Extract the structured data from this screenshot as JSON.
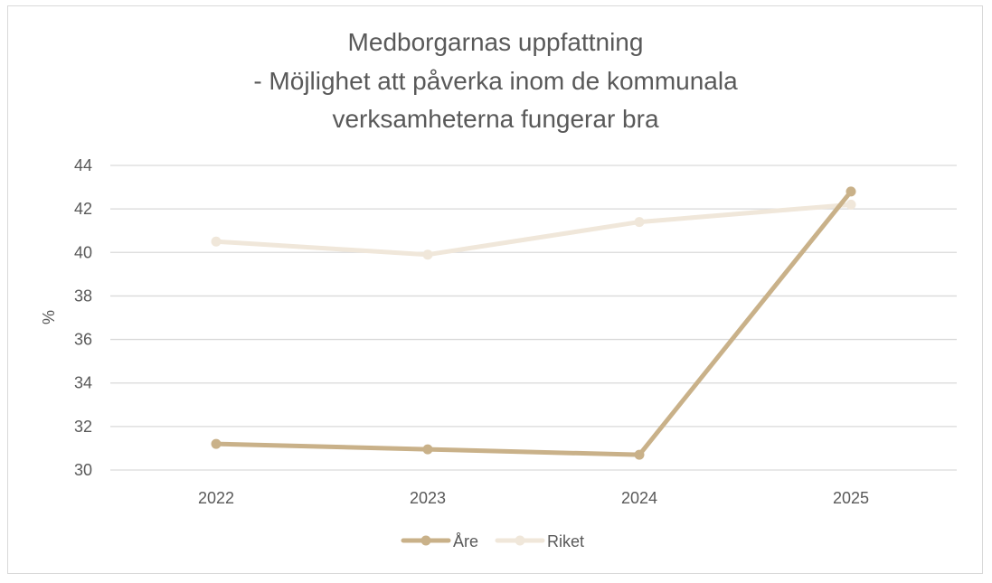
{
  "chart_data": {
    "type": "line",
    "title_lines": [
      "Medborgarnas uppfattning",
      "- Möjlighet att påverka inom de kommunala",
      "verksamheterna fungerar bra"
    ],
    "xlabel": "",
    "ylabel": "%",
    "x": [
      "2022",
      "2023",
      "2024",
      "2025"
    ],
    "ylim": [
      30,
      44
    ],
    "yticks": [
      "30",
      "32",
      "34",
      "36",
      "38",
      "40",
      "42",
      "44"
    ],
    "grid": true,
    "legend_position": "bottom",
    "series": [
      {
        "name": "Åre",
        "color": "#c9b189",
        "values": [
          31.2,
          30.95,
          30.7,
          42.8
        ]
      },
      {
        "name": "Riket",
        "color": "#f0e7da",
        "values": [
          40.5,
          39.9,
          41.4,
          42.2
        ]
      }
    ]
  }
}
